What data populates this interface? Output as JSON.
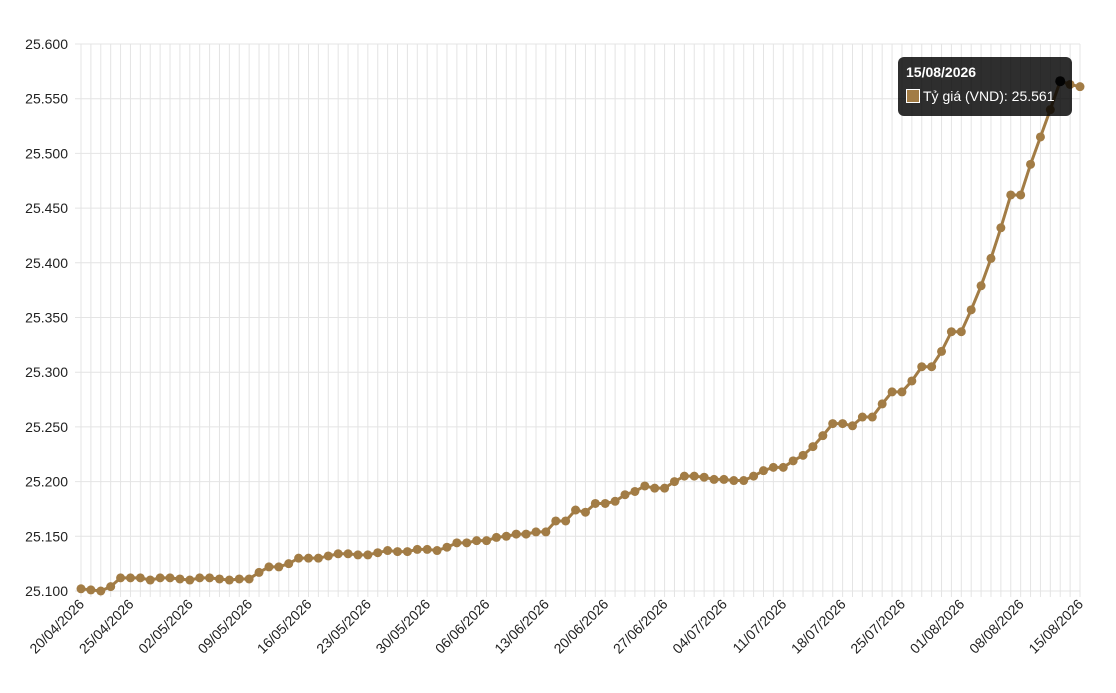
{
  "chart_data": {
    "type": "line",
    "categories": [
      "20/04/2026",
      null,
      null,
      null,
      null,
      "25/04/2026",
      null,
      null,
      null,
      null,
      null,
      "02/05/2026",
      null,
      null,
      null,
      null,
      null,
      "09/05/2026",
      null,
      null,
      null,
      null,
      null,
      "16/05/2026",
      null,
      null,
      null,
      null,
      null,
      "23/05/2026",
      null,
      null,
      null,
      null,
      null,
      "30/05/2026",
      null,
      null,
      null,
      null,
      null,
      "06/06/2026",
      null,
      null,
      null,
      null,
      null,
      "13/06/2026",
      null,
      null,
      null,
      null,
      null,
      "20/06/2026",
      null,
      null,
      null,
      null,
      null,
      "27/06/2026",
      null,
      null,
      null,
      null,
      null,
      "04/07/2026",
      null,
      null,
      null,
      null,
      null,
      "11/07/2026",
      null,
      null,
      null,
      null,
      null,
      "18/07/2026",
      null,
      null,
      null,
      null,
      null,
      "25/07/2026",
      null,
      null,
      null,
      null,
      null,
      "01/08/2026",
      null,
      null,
      null,
      null,
      null,
      "08/08/2026",
      null,
      null,
      null,
      null,
      null,
      "15/08/2026"
    ],
    "series": [
      {
        "name": "Tỷ giá (VND)",
        "color": "#a27c45",
        "values": [
          25102,
          25101,
          25100,
          25104,
          25112,
          25112,
          25112,
          25110,
          25112,
          25112,
          25111,
          25110,
          25112,
          25112,
          25111,
          25110,
          25111,
          25111,
          25117,
          25122,
          25122,
          25125,
          25130,
          25130,
          25130,
          25132,
          25134,
          25134,
          25133,
          25133,
          25135,
          25137,
          25136,
          25136,
          25138,
          25138,
          25137,
          25140,
          25144,
          25144,
          25146,
          25146,
          25149,
          25150,
          25152,
          25152,
          25154,
          25154,
          25164,
          25164,
          25174,
          25172,
          25180,
          25180,
          25182,
          25188,
          25191,
          25196,
          25194,
          25194,
          25200,
          25205,
          25205,
          25204,
          25202,
          25202,
          25201,
          25201,
          25205,
          25210,
          25213,
          25213,
          25219,
          25224,
          25232,
          25242,
          25253,
          25253,
          25251,
          25259,
          25259,
          25271,
          25282,
          25282,
          25292,
          25305,
          25305,
          25319,
          25337,
          25337,
          25357,
          25379,
          25404,
          25432,
          25462,
          25462,
          25490,
          25515,
          25540,
          25566,
          25563,
          25561
        ]
      }
    ],
    "ylim": [
      25100,
      25600
    ],
    "yticks": [
      {
        "value": 25100,
        "label": "25.100"
      },
      {
        "value": 25150,
        "label": "25.150"
      },
      {
        "value": 25200,
        "label": "25.200"
      },
      {
        "value": 25250,
        "label": "25.250"
      },
      {
        "value": 25300,
        "label": "25.300"
      },
      {
        "value": 25350,
        "label": "25.350"
      },
      {
        "value": 25400,
        "label": "25.400"
      },
      {
        "value": 25450,
        "label": "25.450"
      },
      {
        "value": 25500,
        "label": "25.500"
      },
      {
        "value": 25550,
        "label": "25.550"
      },
      {
        "value": 25600,
        "label": "25.600"
      }
    ],
    "grid": true,
    "tooltip": {
      "title": "15/08/2026",
      "body": "Tỷ giá (VND): 25.561"
    }
  }
}
